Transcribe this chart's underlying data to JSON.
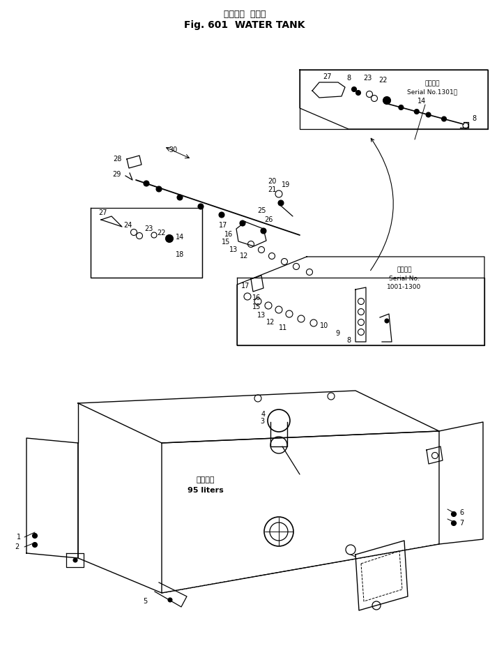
{
  "title_jp": "ウォータ  タンク",
  "title_en": "Fig. 601  WATER TANK",
  "bg_color": "#ffffff",
  "serial_1301": "適用番号\nSerial No.1301～",
  "serial_1001": "適用番号\nSerial No.\n1001-1300",
  "cap_jp": "リッター",
  "cap_en": "95 liters"
}
